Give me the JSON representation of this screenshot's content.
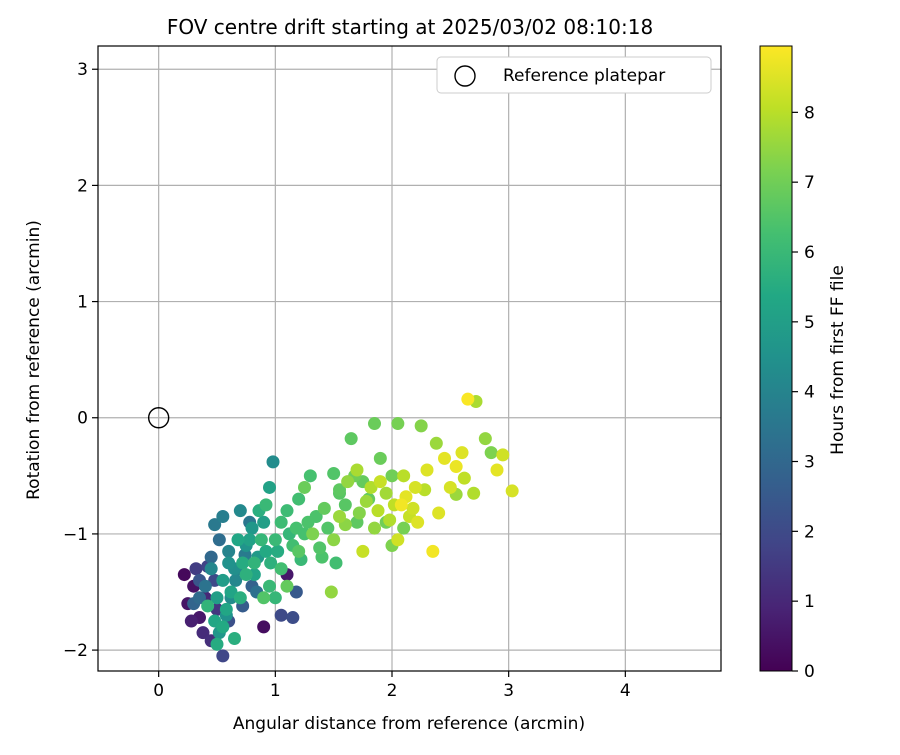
{
  "chart_data": {
    "type": "scatter",
    "title": "FOV centre drift starting at 2025/03/02 08:10:18",
    "xlabel": "Angular distance from reference (arcmin)",
    "ylabel": "Rotation from reference (arcmin)",
    "xlim": [
      -0.52,
      4.82
    ],
    "ylim": [
      -2.18,
      3.2
    ],
    "xticks": [
      0,
      1,
      2,
      3,
      4
    ],
    "yticks": [
      -2,
      -1,
      0,
      1,
      2,
      3
    ],
    "grid": true,
    "legend": {
      "placement": "top-right",
      "label": "Reference platepar"
    },
    "reference_point": {
      "x": 0,
      "y": 0
    },
    "colorbar": {
      "label": "Hours from first FF file",
      "colormap": "viridis",
      "range": [
        0,
        8.95
      ],
      "ticks": [
        0,
        1,
        2,
        3,
        4,
        5,
        6,
        7,
        8
      ]
    },
    "points": [
      [
        0.22,
        -1.35,
        0.2
      ],
      [
        0.3,
        -1.45,
        0.4
      ],
      [
        0.25,
        -1.6,
        0.5
      ],
      [
        0.35,
        -1.72,
        0.6
      ],
      [
        0.28,
        -1.75,
        0.8
      ],
      [
        0.4,
        -1.55,
        1.0
      ],
      [
        0.38,
        -1.85,
        1.1
      ],
      [
        0.45,
        -1.92,
        1.2
      ],
      [
        0.5,
        -1.65,
        1.4
      ],
      [
        0.32,
        -1.3,
        1.6
      ],
      [
        0.42,
        -1.28,
        1.8
      ],
      [
        0.55,
        -2.05,
        1.9
      ],
      [
        0.48,
        -1.4,
        2.0
      ],
      [
        0.6,
        -1.75,
        2.2
      ],
      [
        0.35,
        -1.4,
        2.4
      ],
      [
        0.9,
        -1.8,
        0.3
      ],
      [
        1.1,
        -1.35,
        0.6
      ],
      [
        1.05,
        -1.7,
        2.0
      ],
      [
        1.15,
        -1.72,
        2.1
      ],
      [
        1.18,
        -1.5,
        2.5
      ],
      [
        0.72,
        -1.62,
        2.6
      ],
      [
        0.8,
        -1.45,
        2.8
      ],
      [
        0.45,
        -1.2,
        3.0
      ],
      [
        0.52,
        -1.05,
        3.2
      ],
      [
        0.48,
        -0.92,
        3.6
      ],
      [
        0.55,
        -0.85,
        3.8
      ],
      [
        0.6,
        -1.15,
        4.0
      ],
      [
        0.7,
        -0.8,
        4.2
      ],
      [
        0.65,
        -1.3,
        4.4
      ],
      [
        0.75,
        -1.1,
        4.6
      ],
      [
        0.8,
        -0.95,
        4.7
      ],
      [
        0.85,
        -1.2,
        4.8
      ],
      [
        0.9,
        -0.9,
        5.0
      ],
      [
        0.95,
        -0.6,
        5.1
      ],
      [
        0.98,
        -0.38,
        4.3
      ],
      [
        0.62,
        -1.5,
        5.2
      ],
      [
        0.58,
        -1.65,
        5.3
      ],
      [
        0.55,
        -1.8,
        5.4
      ],
      [
        0.5,
        -1.95,
        5.5
      ],
      [
        0.65,
        -1.9,
        5.6
      ],
      [
        0.7,
        -1.55,
        5.6
      ],
      [
        0.75,
        -1.35,
        5.7
      ],
      [
        0.82,
        -1.25,
        5.8
      ],
      [
        0.88,
        -1.05,
        5.9
      ],
      [
        0.92,
        -0.75,
        6.0
      ],
      [
        1.0,
        -1.05,
        6.0
      ],
      [
        1.05,
        -0.9,
        6.1
      ],
      [
        1.1,
        -0.8,
        6.1
      ],
      [
        1.15,
        -1.1,
        6.2
      ],
      [
        1.2,
        -0.7,
        6.2
      ],
      [
        1.25,
        -1.0,
        6.3
      ],
      [
        1.3,
        -0.5,
        6.3
      ],
      [
        1.35,
        -0.85,
        6.4
      ],
      [
        1.4,
        -1.2,
        6.4
      ],
      [
        1.45,
        -0.95,
        6.5
      ],
      [
        1.5,
        -0.48,
        6.5
      ],
      [
        1.55,
        -0.65,
        6.6
      ],
      [
        1.6,
        -0.75,
        6.6
      ],
      [
        1.65,
        -0.18,
        6.7
      ],
      [
        1.7,
        -0.9,
        6.7
      ],
      [
        1.75,
        -0.55,
        6.8
      ],
      [
        1.8,
        -0.7,
        6.8
      ],
      [
        1.85,
        -0.05,
        6.9
      ],
      [
        1.9,
        -0.35,
        6.9
      ],
      [
        1.95,
        -0.9,
        7.0
      ],
      [
        2.0,
        -0.5,
        7.0
      ],
      [
        2.05,
        -0.05,
        7.1
      ],
      [
        2.1,
        -0.95,
        7.1
      ],
      [
        2.0,
        -1.1,
        7.2
      ],
      [
        1.0,
        -1.55,
        5.9
      ],
      [
        1.05,
        -1.3,
        6.2
      ],
      [
        0.95,
        -1.45,
        6.0
      ],
      [
        0.9,
        -1.55,
        6.5
      ],
      [
        1.1,
        -1.45,
        6.8
      ],
      [
        1.2,
        -1.15,
        6.6
      ],
      [
        1.25,
        -0.6,
        6.9
      ],
      [
        1.32,
        -1.0,
        7.2
      ],
      [
        1.48,
        -1.5,
        7.5
      ],
      [
        1.5,
        -1.05,
        7.4
      ],
      [
        1.55,
        -0.85,
        7.6
      ],
      [
        1.62,
        -0.55,
        7.5
      ],
      [
        1.7,
        -0.45,
        7.8
      ],
      [
        1.75,
        -1.15,
        8.2
      ],
      [
        1.82,
        -0.6,
        7.9
      ],
      [
        1.88,
        -0.8,
        8.0
      ],
      [
        1.95,
        -0.65,
        7.7
      ],
      [
        2.02,
        -0.75,
        8.1
      ],
      [
        2.05,
        -1.05,
        8.3
      ],
      [
        2.1,
        -0.5,
        8.0
      ],
      [
        2.15,
        -0.85,
        8.2
      ],
      [
        2.2,
        -0.6,
        8.4
      ],
      [
        2.25,
        -0.07,
        7.3
      ],
      [
        2.3,
        -0.45,
        8.5
      ],
      [
        2.35,
        -1.15,
        8.8
      ],
      [
        2.38,
        -0.22,
        7.6
      ],
      [
        2.4,
        -0.82,
        8.5
      ],
      [
        2.45,
        -0.35,
        8.6
      ],
      [
        2.5,
        -0.6,
        8.4
      ],
      [
        2.55,
        -0.42,
        8.7
      ],
      [
        2.6,
        -0.3,
        8.5
      ],
      [
        2.65,
        0.16,
        8.9
      ],
      [
        2.72,
        0.14,
        7.8
      ],
      [
        2.7,
        -0.65,
        7.9
      ],
      [
        2.8,
        -0.18,
        7.5
      ],
      [
        2.85,
        -0.3,
        7.2
      ],
      [
        2.9,
        -0.45,
        8.6
      ],
      [
        2.95,
        -0.32,
        8.3
      ],
      [
        3.03,
        -0.63,
        8.4
      ],
      [
        2.62,
        -0.52,
        8.1
      ],
      [
        2.55,
        -0.66,
        7.6
      ],
      [
        2.28,
        -0.62,
        8.0
      ],
      [
        2.22,
        -0.9,
        8.5
      ],
      [
        2.18,
        -0.78,
        8.3
      ],
      [
        2.12,
        -0.68,
        8.6
      ],
      [
        2.08,
        -0.75,
        8.8
      ],
      [
        1.98,
        -0.88,
        7.9
      ],
      [
        1.9,
        -0.55,
        8.2
      ],
      [
        1.85,
        -0.95,
        7.5
      ],
      [
        1.78,
        -0.72,
        7.6
      ],
      [
        1.72,
        -0.82,
        7.3
      ],
      [
        1.68,
        -0.5,
        7.0
      ],
      [
        1.6,
        -0.92,
        7.4
      ],
      [
        1.55,
        -0.62,
        6.7
      ],
      [
        1.52,
        -1.25,
        6.2
      ],
      [
        1.42,
        -0.78,
        6.8
      ],
      [
        1.38,
        -1.12,
        6.5
      ],
      [
        1.28,
        -0.9,
        6.4
      ],
      [
        1.22,
        -1.22,
        6.0
      ],
      [
        1.18,
        -0.95,
        6.3
      ],
      [
        1.12,
        -1.0,
        5.9
      ],
      [
        0.6,
        -1.25,
        4.5
      ],
      [
        0.55,
        -1.4,
        4.9
      ],
      [
        0.5,
        -1.55,
        5.0
      ],
      [
        0.45,
        -1.3,
        4.1
      ],
      [
        0.4,
        -1.45,
        3.4
      ],
      [
        0.35,
        -1.55,
        3.1
      ],
      [
        0.3,
        -1.6,
        2.9
      ],
      [
        0.68,
        -1.05,
        5.3
      ],
      [
        0.72,
        -1.25,
        5.5
      ],
      [
        0.78,
        -1.05,
        5.1
      ],
      [
        0.82,
        -1.35,
        5.2
      ],
      [
        0.86,
        -0.8,
        5.6
      ],
      [
        0.92,
        -1.15,
        5.4
      ],
      [
        0.96,
        -1.25,
        5.7
      ],
      [
        1.02,
        -1.15,
        5.5
      ],
      [
        0.42,
        -1.62,
        5.8
      ],
      [
        0.48,
        -1.75,
        5.3
      ],
      [
        0.52,
        -1.85,
        4.7
      ],
      [
        0.58,
        -1.7,
        4.5
      ],
      [
        0.62,
        -1.55,
        4.3
      ],
      [
        0.66,
        -1.4,
        4.1
      ],
      [
        0.7,
        -1.3,
        3.9
      ],
      [
        0.74,
        -1.18,
        3.7
      ],
      [
        0.78,
        -0.9,
        3.5
      ],
      [
        0.84,
        -1.5,
        3.3
      ]
    ]
  }
}
